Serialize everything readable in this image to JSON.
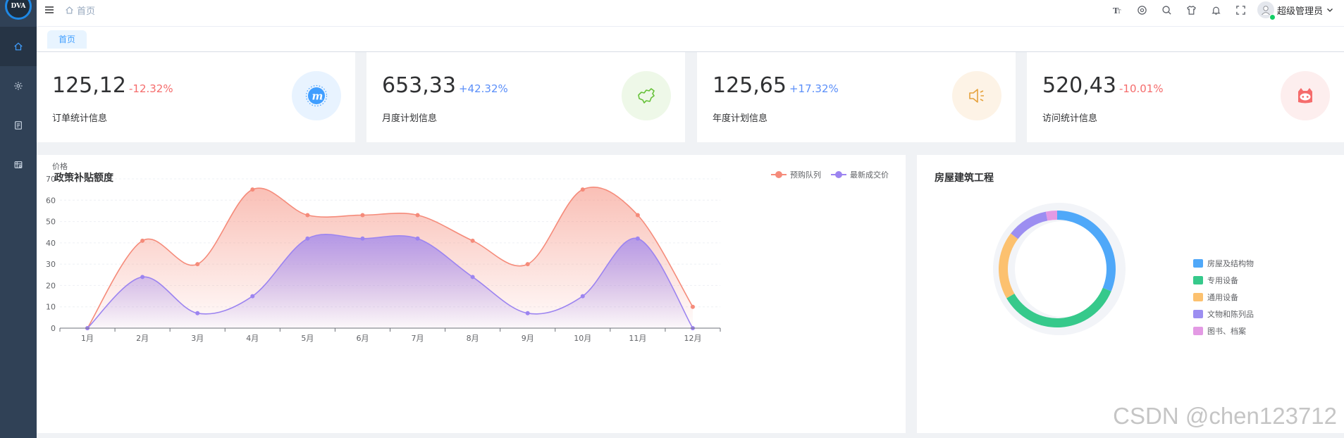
{
  "app": {
    "logo_text": "DVA"
  },
  "sidebar": {
    "items": [
      {
        "name": "home",
        "icon": "home-icon",
        "active": true
      },
      {
        "name": "settings",
        "icon": "gear-icon",
        "active": false
      },
      {
        "name": "document",
        "icon": "document-icon",
        "active": false
      },
      {
        "name": "system",
        "icon": "database-icon",
        "active": false
      }
    ]
  },
  "navbar": {
    "breadcrumb": "首页",
    "user_name": "超级管理员"
  },
  "tags": {
    "active": "首页"
  },
  "stats": [
    {
      "value": "125,12",
      "change": "-12.32%",
      "label": "订单统计信息",
      "color": "#409eff",
      "bg": "#e8f3ff",
      "icon": "m-badge-icon"
    },
    {
      "value": "653,33",
      "change": "+42.32%",
      "label": "月度计划信息",
      "color": "#67c23a",
      "bg": "#eef8e8",
      "icon": "china-map-icon"
    },
    {
      "value": "125,65",
      "change": "+17.32%",
      "label": "年度计划信息",
      "color": "#e6a23c",
      "bg": "#fdf3e6",
      "icon": "speaker-icon"
    },
    {
      "value": "520,43",
      "change": "-10.01%",
      "label": "访问统计信息",
      "color": "#f56c6c",
      "bg": "#fdeeee",
      "icon": "github-cat-icon"
    }
  ],
  "line_panel": {
    "title": "政策补贴额度",
    "ylabel": "价格"
  },
  "pie_panel": {
    "title": "房屋建筑工程"
  },
  "chart_data": [
    {
      "type": "area",
      "title": "政策补贴额度",
      "ylabel": "价格",
      "xlabel": "",
      "categories": [
        "1月",
        "2月",
        "3月",
        "4月",
        "5月",
        "6月",
        "7月",
        "8月",
        "9月",
        "10月",
        "11月",
        "12月"
      ],
      "ylim": [
        0,
        70
      ],
      "yticks": [
        0,
        10,
        20,
        30,
        40,
        50,
        60,
        70
      ],
      "series": [
        {
          "name": "预购队列",
          "color": "#f58b7a",
          "values": [
            0,
            41,
            30,
            65,
            53,
            53,
            53,
            41,
            30,
            65,
            53,
            10
          ]
        },
        {
          "name": "最新成交价",
          "color": "#9c84f0",
          "values": [
            0,
            24,
            7,
            15,
            42,
            42,
            42,
            24,
            7,
            15,
            42,
            0
          ]
        }
      ],
      "legend": "top-right"
    },
    {
      "type": "pie",
      "title": "房屋建筑工程",
      "labels": [
        "房屋及结构物",
        "专用设备",
        "通用设备",
        "文物和陈列品",
        "图书、档案"
      ],
      "values": [
        30,
        34,
        18,
        11,
        3
      ],
      "colors": [
        "#4fa8f9",
        "#36c98b",
        "#fcc16f",
        "#9c8ef1",
        "#e39ae4"
      ],
      "legend": "right"
    }
  ],
  "watermark": "CSDN @chen123712"
}
